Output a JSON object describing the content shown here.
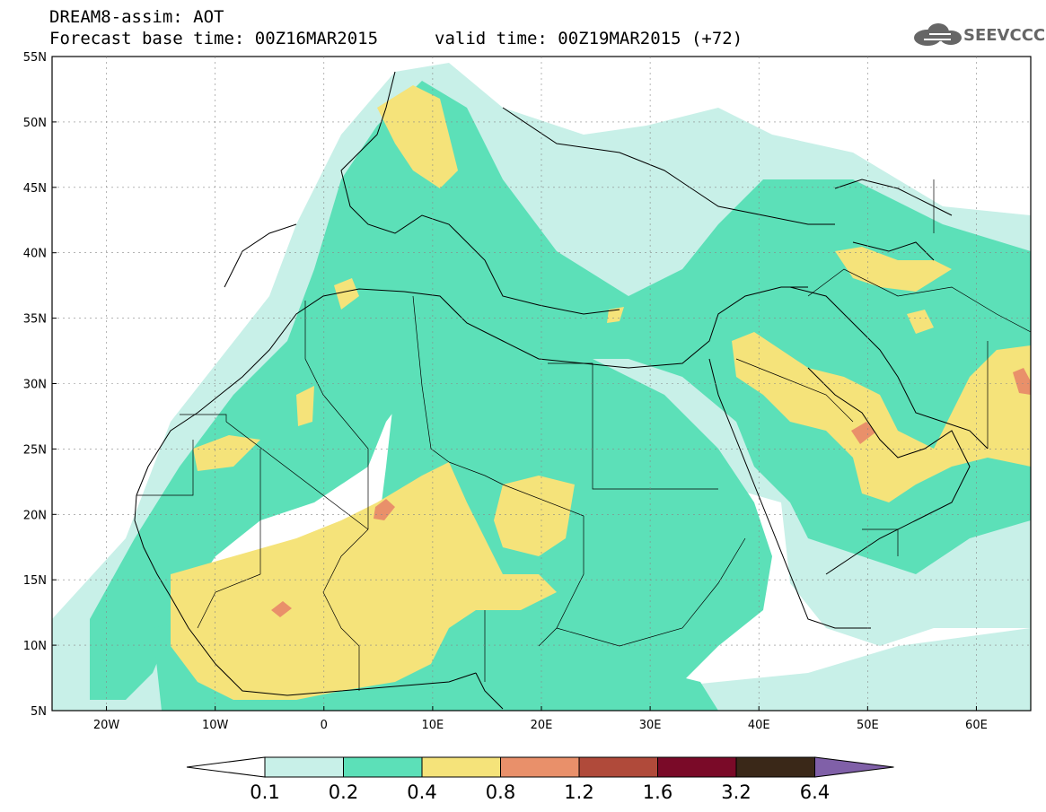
{
  "title": {
    "line1": "DREAM8-assim: AOT",
    "line2": "Forecast base time: 00Z16MAR2015",
    "valid": "valid time: 00Z19MAR2015 (+72)"
  },
  "logo": {
    "text": "SEEVCCC"
  },
  "axes": {
    "lat_labels": [
      "55N",
      "50N",
      "45N",
      "40N",
      "35N",
      "30N",
      "25N",
      "20N",
      "15N",
      "10N",
      "5N"
    ],
    "lon_labels": [
      "20W",
      "10W",
      "0",
      "10E",
      "20E",
      "30E",
      "40E",
      "50E",
      "60E"
    ]
  },
  "colorbar": {
    "labels": [
      "0.1",
      "0.2",
      "0.4",
      "0.8",
      "1.2",
      "1.6",
      "3.2",
      "6.4"
    ],
    "colors": [
      "#ffffff",
      "#c8f0e8",
      "#5ce0b8",
      "#f5e37a",
      "#e9906a",
      "#b04a3a",
      "#7a0a28",
      "#3a2818",
      "#8060a8"
    ]
  },
  "map_colors": {
    "c01": "#c8f0e8",
    "c02": "#5ce0b8",
    "c04": "#f5e37a",
    "c08": "#e9906a",
    "c12": "#b04a3a"
  }
}
